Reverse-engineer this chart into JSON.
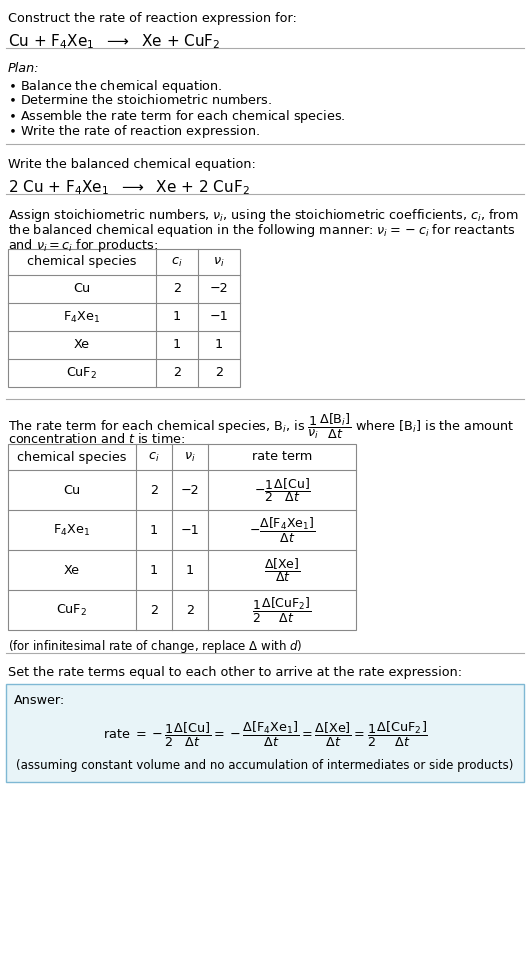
{
  "bg_color": "#ffffff",
  "text_color": "#000000",
  "fs": 10.5,
  "fss": 9.2,
  "fssm": 8.5,
  "table1_headers": [
    "chemical species",
    "$c_i$",
    "$\\nu_i$"
  ],
  "table1_rows": [
    [
      "Cu",
      "2",
      "−2"
    ],
    [
      "F$_4$Xe$_1$",
      "1",
      "−1"
    ],
    [
      "Xe",
      "1",
      "1"
    ],
    [
      "CuF$_2$",
      "2",
      "2"
    ]
  ],
  "table2_headers": [
    "chemical species",
    "$c_i$",
    "$\\nu_i$",
    "rate term"
  ],
  "table2_rows": [
    [
      "Cu",
      "2",
      "−2"
    ],
    [
      "F$_4$Xe$_1$",
      "1",
      "−1"
    ],
    [
      "Xe",
      "1",
      "1"
    ],
    [
      "CuF$_2$",
      "2",
      "2"
    ]
  ],
  "table2_rate_terms": [
    "$-\\dfrac{1}{2}\\dfrac{\\Delta[\\mathrm{Cu}]}{\\Delta t}$",
    "$-\\dfrac{\\Delta[\\mathrm{F_4Xe_1}]}{\\Delta t}$",
    "$\\dfrac{\\Delta[\\mathrm{Xe}]}{\\Delta t}$",
    "$\\dfrac{1}{2}\\dfrac{\\Delta[\\mathrm{CuF_2}]}{\\Delta t}$"
  ],
  "answer_box_color": "#e8f4f8",
  "answer_box_border": "#7fb8d4",
  "line_color": "#aaaaaa"
}
